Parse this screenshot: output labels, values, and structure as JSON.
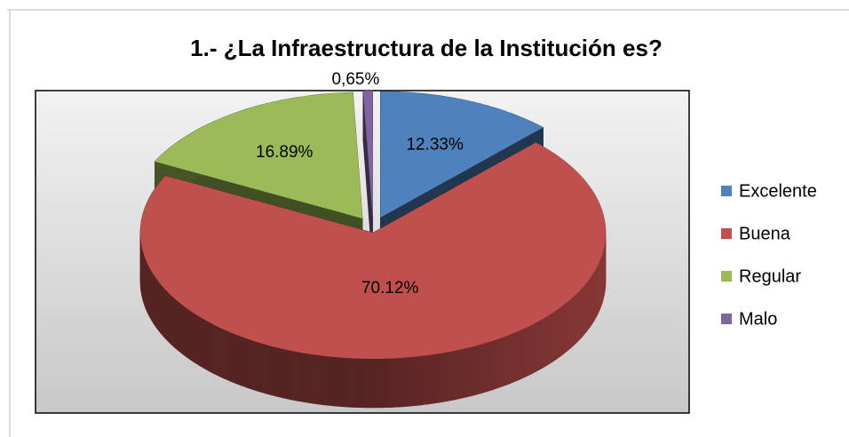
{
  "chart_data": {
    "type": "pie3d",
    "title": "1.- ¿La Infraestructura de la Institución es?",
    "categories": [
      "Excelente",
      "Buena",
      "Regular",
      "Malo"
    ],
    "values": [
      12.33,
      70.12,
      16.89,
      0.65
    ],
    "value_labels": [
      "12.33%",
      "70.12%",
      "16.89%",
      "0,65%"
    ],
    "colors": [
      "#4f81bd",
      "#c0504d",
      "#9bbb59",
      "#8064a2"
    ],
    "legend": "right"
  }
}
